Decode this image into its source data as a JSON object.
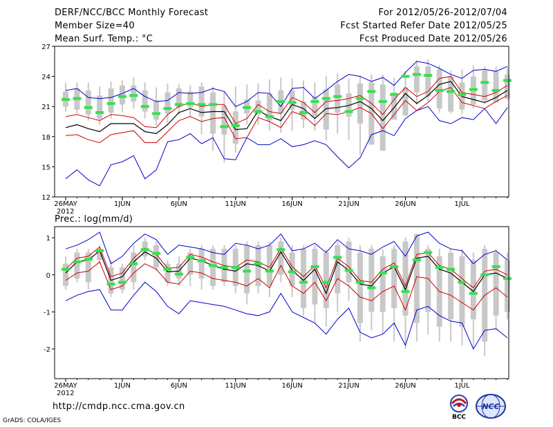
{
  "header": {
    "title": "DERF/NCC/BCC Monthly Forecast",
    "member": "Member Size=40",
    "variable": "Mean Surf. Temp.: °C",
    "forecast_range": "For 2012/05/26-2012/07/04",
    "start_date": "Fcst Started Refer Date 2012/05/25",
    "produced_date": "Fcst Produced Date 2012/05/26"
  },
  "footer": {
    "url": "http://cmdp.ncc.cma.gov.cn",
    "grads": "GrADS: COLA/IGES",
    "logo_left": "BCC",
    "logo_right": "NCC"
  },
  "colors": {
    "box": "#c8c8c8",
    "green": "#33e24a",
    "blue": "#0000cc",
    "red": "#cc0000",
    "mean": "#000000"
  },
  "chart_data": [
    {
      "id": "temperature",
      "type": "box-ensemble",
      "title": "Mean Surf. Temp.: °C",
      "ylim": [
        12,
        27
      ],
      "yticks": [
        12,
        15,
        18,
        21,
        24,
        27
      ],
      "x_ticks": [
        {
          "day": 1,
          "label": "26MAY",
          "sub": "2012"
        },
        {
          "day": 6,
          "label": "1JUN"
        },
        {
          "day": 11,
          "label": "6JUN"
        },
        {
          "day": 16,
          "label": "11JUN"
        },
        {
          "day": 21,
          "label": "16JUN"
        },
        {
          "day": 26,
          "label": "21JUN"
        },
        {
          "day": 31,
          "label": "26JUN"
        },
        {
          "day": 36,
          "label": "1JUL"
        }
      ],
      "days": 40,
      "box_low": [
        21.0,
        20.7,
        20.2,
        19.8,
        20.4,
        21.2,
        21.5,
        20.5,
        19.7,
        20.3,
        20.9,
        20.9,
        20.0,
        18.3,
        18.2,
        17.3,
        20.3,
        20.2,
        19.6,
        20.3,
        20.7,
        19.7,
        20.0,
        18.7,
        20.4,
        20.0,
        19.3,
        17.2,
        16.6,
        19.7,
        20.1,
        22.4,
        22.0,
        20.8,
        20.5,
        20.7,
        21.2,
        21.6,
        21.4,
        21.8
      ],
      "box_high": [
        22.5,
        22.8,
        22.6,
        22.1,
        22.8,
        23.1,
        23.1,
        22.6,
        21.6,
        22.4,
        22.8,
        22.5,
        23.0,
        22.4,
        21.1,
        20.5,
        21.7,
        21.6,
        22.3,
        22.6,
        22.6,
        21.5,
        22.0,
        22.7,
        23.2,
        22.3,
        23.3,
        23.4,
        23.2,
        22.4,
        22.9,
        25.0,
        25.0,
        24.7,
        24.0,
        23.4,
        24.0,
        24.6,
        24.5,
        24.2
      ],
      "members_max": [
        23.4,
        23.4,
        23.4,
        23.0,
        23.5,
        23.6,
        23.9,
        23.4,
        22.9,
        23.3,
        23.2,
        23.1,
        23.4,
        23.0,
        22.5,
        23.0,
        23.2,
        23.3,
        23.7,
        23.9,
        23.8,
        23.6,
        23.4,
        24.0,
        24.3,
        23.8,
        24.1,
        24.2,
        24.2,
        23.9,
        24.5,
        25.6,
        25.7,
        25.1,
        24.6,
        24.7,
        25.1,
        25.0,
        25.0,
        24.9
      ],
      "members_min": [
        20.5,
        20.3,
        19.6,
        19.2,
        19.8,
        20.4,
        20.8,
        19.8,
        19.1,
        19.4,
        20.2,
        20.0,
        18.2,
        16.6,
        15.4,
        16.4,
        19.2,
        19.2,
        18.6,
        18.4,
        18.6,
        18.9,
        18.6,
        17.6,
        18.3,
        17.7,
        16.2,
        18.6,
        18.7,
        19.9,
        20.1,
        21.2,
        21.5,
        20.4,
        20.3,
        20.3,
        20.8,
        21.3,
        21.6,
        21.7
      ],
      "green_marker": [
        21.7,
        21.8,
        20.9,
        20.4,
        21.3,
        22.0,
        22.1,
        21.0,
        20.3,
        20.8,
        21.2,
        21.3,
        21.2,
        21.2,
        19.0,
        19.1,
        20.9,
        20.5,
        20.0,
        21.5,
        21.4,
        20.4,
        21.5,
        21.8,
        22.0,
        20.5,
        21.8,
        22.5,
        21.5,
        22.2,
        24.0,
        24.2,
        24.1,
        22.6,
        22.5,
        22.2,
        22.7,
        23.4,
        22.6,
        23.6
      ],
      "ens_mean": [
        18.9,
        19.2,
        18.8,
        18.5,
        19.3,
        19.3,
        19.3,
        18.5,
        18.3,
        19.2,
        20.4,
        20.8,
        20.4,
        20.5,
        20.5,
        18.7,
        18.8,
        20.6,
        20.0,
        19.6,
        21.2,
        20.8,
        19.8,
        20.8,
        20.9,
        21.1,
        21.5,
        20.8,
        19.6,
        20.9,
        22.3,
        21.3,
        22.1,
        23.2,
        23.5,
        22.0,
        21.7,
        21.4,
        21.9,
        22.6
      ],
      "upper_red": [
        20.0,
        20.2,
        19.9,
        19.6,
        20.2,
        20.1,
        19.9,
        19.0,
        18.9,
        20.2,
        21.0,
        21.4,
        21.0,
        21.2,
        21.2,
        19.3,
        19.8,
        21.2,
        20.5,
        20.3,
        21.9,
        21.4,
        20.4,
        21.5,
        21.6,
        21.8,
        22.1,
        21.3,
        20.2,
        21.7,
        22.9,
        22.0,
        22.5,
        23.8,
        24.0,
        22.4,
        22.2,
        22.0,
        22.4,
        23.1
      ],
      "lower_red": [
        18.1,
        18.2,
        17.7,
        17.4,
        18.2,
        18.4,
        18.6,
        17.4,
        17.4,
        18.5,
        19.6,
        20.0,
        19.5,
        19.8,
        19.9,
        17.8,
        17.9,
        19.9,
        19.5,
        18.9,
        20.5,
        20.1,
        19.1,
        20.3,
        20.2,
        20.5,
        20.9,
        20.3,
        18.8,
        20.2,
        21.6,
        20.6,
        21.4,
        22.5,
        22.9,
        21.4,
        21.1,
        20.8,
        21.5,
        22.1
      ],
      "blue_max": [
        22.6,
        22.8,
        21.9,
        21.8,
        21.9,
        22.3,
        22.8,
        22.0,
        21.5,
        21.6,
        22.4,
        22.3,
        22.4,
        22.8,
        22.5,
        21.0,
        21.5,
        22.4,
        22.3,
        21.0,
        22.8,
        22.9,
        21.8,
        22.6,
        23.5,
        24.2,
        24.0,
        23.5,
        23.9,
        23.1,
        24.4,
        25.5,
        25.3,
        24.8,
        24.2,
        23.8,
        24.6,
        24.7,
        24.5,
        25.0
      ],
      "blue_min": [
        13.8,
        14.7,
        13.7,
        13.1,
        15.2,
        15.5,
        16.1,
        13.8,
        14.7,
        17.5,
        17.7,
        18.3,
        17.3,
        17.9,
        15.8,
        15.7,
        17.9,
        17.2,
        17.2,
        17.8,
        17.0,
        17.2,
        17.6,
        17.2,
        16.0,
        14.9,
        15.9,
        18.2,
        18.6,
        18.1,
        19.8,
        20.6,
        21.0,
        19.6,
        19.3,
        19.9,
        19.7,
        20.8,
        19.3,
        20.9
      ]
    },
    {
      "id": "precipitation",
      "type": "box-ensemble",
      "title": "Prec.: log(mm/d)",
      "ylim": [
        -2.8,
        1.3
      ],
      "yticks": [
        -2,
        -1,
        0,
        1
      ],
      "x_ticks": [
        {
          "day": 1,
          "label": "26MAY",
          "sub": "2012"
        },
        {
          "day": 6,
          "label": "1JUN"
        },
        {
          "day": 11,
          "label": "6JUN"
        },
        {
          "day": 16,
          "label": "11JUN"
        },
        {
          "day": 21,
          "label": "16JUN"
        },
        {
          "day": 26,
          "label": "21JUN"
        },
        {
          "day": 31,
          "label": "26JUN"
        },
        {
          "day": 36,
          "label": "1JUL"
        }
      ],
      "days": 40,
      "box_low": [
        -0.3,
        -0.1,
        -0.2,
        0.4,
        -0.5,
        -0.4,
        -0.2,
        0.5,
        0.2,
        -0.2,
        -0.1,
        0.0,
        -0.1,
        -0.3,
        -0.2,
        -0.3,
        -0.5,
        -0.3,
        -0.3,
        0.0,
        -0.3,
        -0.9,
        -0.8,
        -0.9,
        -0.5,
        -0.2,
        -1.3,
        -1.0,
        -1.0,
        -0.9,
        -1.1,
        -1.3,
        -1.0,
        -1.4,
        -1.2,
        -1.4,
        -1.2,
        -1.8,
        -1.1,
        -1.0
      ],
      "box_high": [
        0.3,
        0.6,
        0.6,
        0.7,
        0.2,
        0.2,
        0.6,
        0.9,
        0.8,
        0.3,
        0.3,
        0.6,
        0.7,
        0.7,
        0.7,
        0.7,
        0.8,
        0.8,
        0.8,
        0.9,
        0.6,
        0.7,
        0.7,
        0.6,
        0.8,
        0.9,
        0.6,
        0.7,
        0.5,
        0.7,
        0.9,
        1.1,
        0.7,
        0.5,
        0.6,
        0.5,
        0.4,
        0.7,
        0.6,
        0.4
      ],
      "members_max": [
        0.5,
        0.7,
        0.7,
        0.8,
        0.4,
        0.3,
        0.8,
        1.0,
        0.9,
        0.4,
        0.5,
        0.7,
        0.8,
        0.8,
        0.8,
        0.8,
        0.9,
        0.9,
        0.9,
        1.0,
        0.8,
        0.8,
        0.8,
        0.7,
        0.9,
        1.0,
        0.8,
        0.8,
        0.7,
        0.8,
        1.0,
        1.1,
        0.8,
        0.7,
        0.7,
        0.7,
        0.6,
        0.8,
        0.7,
        0.6
      ],
      "members_min": [
        -0.4,
        -0.2,
        -0.4,
        0.3,
        -0.6,
        -0.5,
        -0.4,
        0.4,
        0.1,
        -0.3,
        -0.3,
        -0.3,
        -0.4,
        -0.4,
        -0.3,
        -0.5,
        -0.8,
        -0.5,
        -0.6,
        -0.2,
        -0.6,
        -1.1,
        -1.3,
        -1.4,
        -1.0,
        -0.7,
        -1.8,
        -1.5,
        -1.6,
        -1.8,
        -2.0,
        -1.8,
        -1.6,
        -1.8,
        -1.8,
        -1.9,
        -2.0,
        -2.2,
        -1.5,
        -1.2
      ],
      "green_marker": [
        0.15,
        0.35,
        0.42,
        0.65,
        -0.25,
        -0.2,
        0.3,
        0.68,
        0.58,
        0.15,
        0.02,
        0.47,
        0.38,
        0.25,
        0.2,
        0.2,
        0.1,
        0.3,
        0.1,
        0.68,
        0.08,
        -0.2,
        0.22,
        -0.2,
        0.47,
        0.12,
        -0.2,
        -0.35,
        0.05,
        0.22,
        -0.45,
        0.4,
        0.6,
        0.2,
        0.15,
        -0.2,
        -0.5,
        0.0,
        0.22,
        -0.1
      ],
      "ens_mean": [
        0.05,
        0.35,
        0.4,
        0.65,
        -0.15,
        -0.05,
        0.35,
        0.62,
        0.45,
        0.08,
        0.1,
        0.45,
        0.38,
        0.25,
        0.15,
        0.1,
        0.3,
        0.25,
        0.1,
        0.62,
        0.12,
        -0.15,
        0.15,
        -0.5,
        0.35,
        0.12,
        -0.25,
        -0.3,
        0.05,
        0.22,
        -0.4,
        0.45,
        0.5,
        0.15,
        0.05,
        -0.2,
        -0.45,
        0.0,
        0.05,
        -0.1
      ],
      "upper_red": [
        0.15,
        0.45,
        0.5,
        0.75,
        -0.05,
        0.05,
        0.45,
        0.72,
        0.55,
        0.18,
        0.2,
        0.55,
        0.48,
        0.35,
        0.25,
        0.2,
        0.4,
        0.35,
        0.2,
        0.72,
        0.22,
        -0.05,
        0.25,
        -0.35,
        0.45,
        0.22,
        -0.15,
        -0.2,
        0.15,
        0.32,
        -0.3,
        0.55,
        0.6,
        0.25,
        0.15,
        -0.1,
        -0.35,
        0.1,
        0.15,
        0.0
      ],
      "lower_red": [
        -0.15,
        0.05,
        0.1,
        0.35,
        -0.4,
        -0.3,
        0.05,
        0.3,
        0.15,
        -0.2,
        -0.25,
        0.1,
        0.05,
        -0.1,
        -0.15,
        -0.2,
        -0.3,
        -0.1,
        -0.35,
        0.25,
        -0.3,
        -0.5,
        -0.2,
        -0.7,
        -0.1,
        -0.3,
        -0.6,
        -0.7,
        -0.45,
        -0.3,
        -0.95,
        -0.05,
        -0.1,
        -0.45,
        -0.55,
        -0.75,
        -0.95,
        -0.55,
        -0.35,
        -0.6
      ],
      "blue_max": [
        0.7,
        0.8,
        0.95,
        1.15,
        0.3,
        0.5,
        0.85,
        1.1,
        0.95,
        0.55,
        0.8,
        0.75,
        0.7,
        0.6,
        0.55,
        0.85,
        0.8,
        0.7,
        0.8,
        1.1,
        0.65,
        0.7,
        0.85,
        0.6,
        0.95,
        0.7,
        0.65,
        0.55,
        0.75,
        0.9,
        0.5,
        1.05,
        1.15,
        0.85,
        0.7,
        0.65,
        0.3,
        0.55,
        0.65,
        0.4
      ],
      "blue_min": [
        -0.7,
        -0.55,
        -0.45,
        -0.4,
        -0.95,
        -0.95,
        -0.55,
        -0.2,
        -0.45,
        -0.85,
        -1.05,
        -0.7,
        -0.75,
        -0.8,
        -0.85,
        -0.95,
        -1.05,
        -1.1,
        -1.0,
        -0.5,
        -1.0,
        -1.15,
        -1.3,
        -1.6,
        -1.2,
        -0.9,
        -1.55,
        -1.7,
        -1.6,
        -1.3,
        -1.9,
        -0.95,
        -0.85,
        -1.1,
        -1.25,
        -1.3,
        -2.0,
        -1.5,
        -1.45,
        -1.7
      ]
    }
  ]
}
